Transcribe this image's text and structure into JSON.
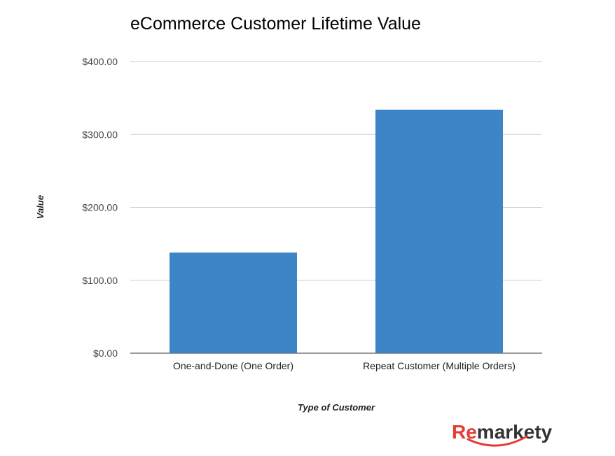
{
  "chart_data": {
    "type": "bar",
    "title": "eCommerce Customer Lifetime Value",
    "xlabel": "Type of Customer",
    "ylabel": "Value",
    "categories": [
      "One-and-Done (One Order)",
      "Repeat Customer (Multiple Orders)"
    ],
    "values": [
      138,
      334
    ],
    "ylim": [
      0,
      400
    ],
    "yticks": [
      0,
      100,
      200,
      300,
      400
    ],
    "ytick_labels": [
      "$0.00",
      "$100.00",
      "$200.00",
      "$300.00",
      "$400.00"
    ],
    "grid": true,
    "bar_color": "#3d85c6"
  },
  "logo": {
    "text": "Remarkety",
    "red_part": "Re",
    "dark_part": "markety",
    "red_color": "#e53a35",
    "dark_color": "#333333"
  }
}
